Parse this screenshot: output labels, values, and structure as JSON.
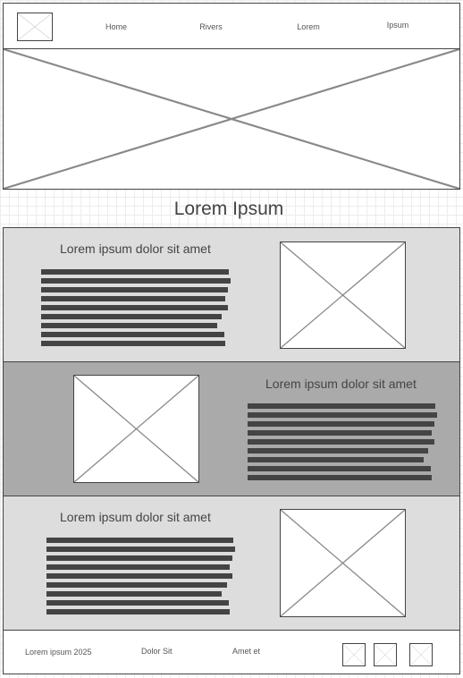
{
  "header": {
    "logo_icon": "image-placeholder-icon",
    "nav": [
      {
        "label": "Home"
      },
      {
        "label": "Rivers"
      },
      {
        "label": "Lorem"
      },
      {
        "label": "Ipsum"
      }
    ]
  },
  "hero": {
    "icon": "image-placeholder-icon"
  },
  "page_title": "Lorem Ipsum",
  "sections": [
    {
      "title": "Lorem ipsum dolor sit amet",
      "background": "#dddddd",
      "image_icon": "image-placeholder-icon"
    },
    {
      "title": "Lorem ipsum dolor sit amet",
      "background": "#aaaaaa",
      "image_icon": "image-placeholder-icon"
    },
    {
      "title": "Lorem ipsum dolor sit amet",
      "background": "#dddddd",
      "image_icon": "image-placeholder-icon"
    }
  ],
  "footer": {
    "copyright": "Lorem ipsum 2025",
    "link1": "Dolor Sit",
    "link2": "Amet et",
    "social_icons": [
      "image-placeholder-icon",
      "image-placeholder-icon",
      "image-placeholder-icon"
    ]
  },
  "colors": {
    "text_block": "#444444",
    "border": "#444444",
    "light_section": "#dddddd",
    "dark_section": "#aaaaaa"
  }
}
